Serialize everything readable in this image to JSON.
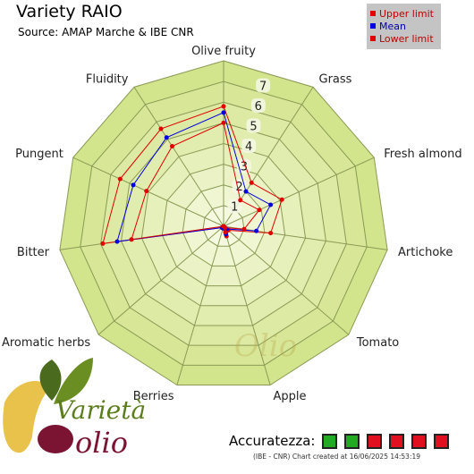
{
  "title": "Variety RAIO",
  "subtitle": "Source: AMAP Marche & IBE CNR",
  "legend": {
    "upper": "Upper limit",
    "mean": "Mean",
    "lower": "Lower limit"
  },
  "colors": {
    "upper": "#e00000",
    "mean": "#0000e0",
    "lower": "#e00000",
    "acc_green": "#22aa22",
    "acc_red": "#e01020"
  },
  "chart_data": {
    "type": "radar",
    "axes": [
      "Olive fruity",
      "Grass",
      "Fresh almond",
      "Artichoke",
      "Tomato",
      "Apple",
      "Berries",
      "Aromatic herbs",
      "Bitter",
      "Pungent",
      "Fluidity"
    ],
    "scale": [
      0,
      8
    ],
    "ticks": [
      "1",
      "2",
      "3",
      "4",
      "5",
      "6",
      "7"
    ],
    "series": [
      {
        "name": "Upper limit",
        "values": [
          5.8,
          2.5,
          3.1,
          2.3,
          0.3,
          0.5,
          0.1,
          0.1,
          5.9,
          5.5,
          5.6
        ]
      },
      {
        "name": "Mean",
        "values": [
          5.5,
          2.0,
          2.5,
          1.6,
          0.2,
          0.4,
          0.1,
          0.1,
          5.2,
          4.8,
          5.1
        ]
      },
      {
        "name": "Lower limit",
        "values": [
          5.0,
          1.5,
          1.9,
          1.0,
          0.1,
          0.3,
          0.0,
          0.0,
          4.5,
          4.1,
          4.6
        ]
      }
    ]
  },
  "logo": {
    "line1": "Varietà",
    "line2": "olio"
  },
  "watermark": "Olio",
  "accuracy": {
    "label": "Accuratezza:",
    "boxes": [
      "green",
      "green",
      "red",
      "red",
      "red",
      "red"
    ]
  },
  "footer": "(IBE - CNR) Chart created at 16/06/2025 14:53:19"
}
